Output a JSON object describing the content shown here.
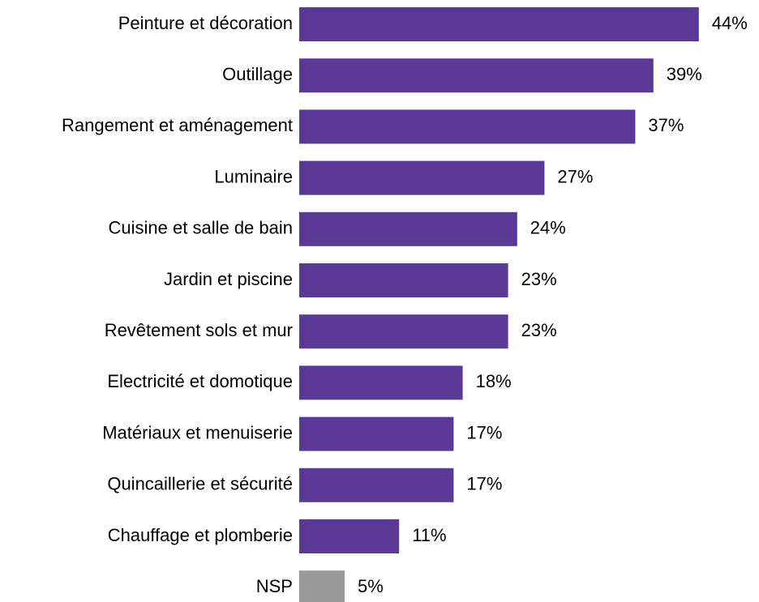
{
  "chart_data": {
    "type": "hbar",
    "categories": [
      "Peinture et décoration",
      "Outillage",
      "Rangement et aménagement",
      "Luminaire",
      "Cuisine et salle de bain",
      "Jardin et piscine",
      "Revêtement sols et mur",
      "Electricité et domotique",
      "Matériaux et menuiserie",
      "Quincaillerie et sécurité",
      "Chauffage et plomberie",
      "NSP"
    ],
    "values": [
      44,
      39,
      37,
      27,
      24,
      23,
      23,
      18,
      17,
      17,
      11,
      5
    ],
    "value_labels": [
      "44%",
      "39%",
      "37%",
      "27%",
      "24%",
      "23%",
      "23%",
      "18%",
      "17%",
      "17%",
      "11%",
      "5%"
    ],
    "colors": [
      "#5b3a96",
      "#5b3a96",
      "#5b3a96",
      "#5b3a96",
      "#5b3a96",
      "#5b3a96",
      "#5b3a96",
      "#5b3a96",
      "#5b3a96",
      "#5b3a96",
      "#5b3a96",
      "#999999"
    ]
  }
}
